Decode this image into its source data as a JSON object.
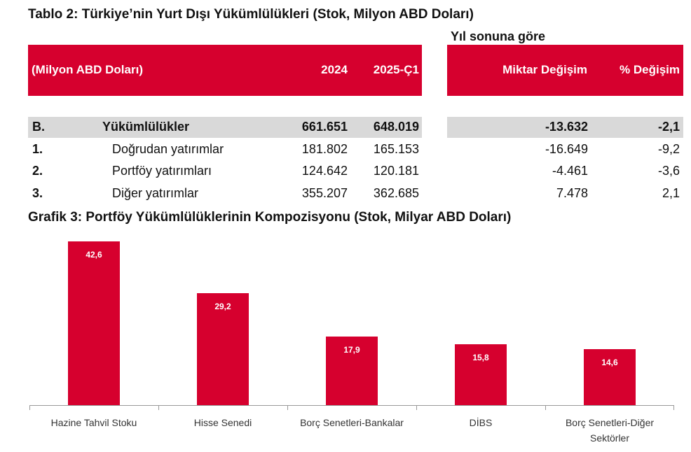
{
  "table": {
    "title": "Tablo 2: Türkiye’nin Yurt Dışı Yükümlülükleri (Stok, Milyon ABD Doları)",
    "group_header": "Yıl sonuna göre",
    "headers": {
      "unit": "(Milyon ABD Doları)",
      "col_2024": "2024",
      "col_2025": "2025-Ç1",
      "col_change": "Miktar Değişim",
      "col_pct": "% Değişim"
    },
    "rows": [
      {
        "code": "B.",
        "label": "Yükümlülükler",
        "v2024": "661.651",
        "v2025": "648.019",
        "change": "-13.632",
        "pct": "-2,1"
      },
      {
        "code": "1.",
        "label": "Doğrudan yatırımlar",
        "v2024": "181.802",
        "v2025": "165.153",
        "change": "-16.649",
        "pct": "-9,2"
      },
      {
        "code": "2.",
        "label": "Portföy yatırımları",
        "v2024": "124.642",
        "v2025": "120.181",
        "change": "-4.461",
        "pct": "-3,6"
      },
      {
        "code": "3.",
        "label": "Diğer yatırımlar",
        "v2024": "355.207",
        "v2025": "362.685",
        "change": "7.478",
        "pct": "2,1"
      }
    ]
  },
  "chart_title": "Grafik 3: Portföy Yükümlülüklerinin Kompozisyonu (Stok, Milyar ABD Doları)",
  "colors": {
    "accent": "#d6002e",
    "grey_row": "#d9d9d9"
  },
  "chart_data": {
    "type": "bar",
    "title": "Grafik 3: Portföy Yükümlülüklerinin Kompozisyonu (Stok, Milyar ABD Doları)",
    "categories": [
      "Hazine Tahvil Stoku",
      "Hisse Senedi",
      "Borç Senetleri-Bankalar",
      "DİBS",
      "Borç Senetleri-Diğer Sektörler"
    ],
    "values": [
      42.6,
      29.2,
      17.9,
      15.8,
      14.6
    ],
    "value_labels": [
      "42,6",
      "29,2",
      "17,9",
      "15,8",
      "14,6"
    ],
    "ylim": [
      0,
      43
    ],
    "grid": false,
    "legend": "none"
  }
}
